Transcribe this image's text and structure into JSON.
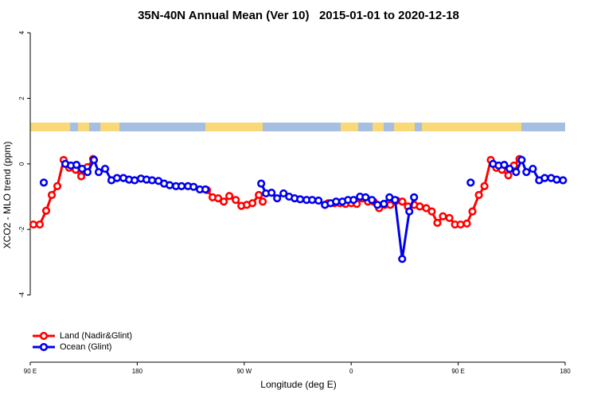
{
  "chart_data": {
    "type": "line",
    "title": "35N-40N Annual Mean (Ver 10)   2015-01-01 to 2020-12-18",
    "x_label": "Longitude (deg E)",
    "y_label": "XCO2 - MLO trend (ppm)",
    "xlim": [
      90,
      540
    ],
    "ylim": [
      -6.05,
      4.15
    ],
    "xticks": [
      {
        "value": 90,
        "label": "90 E"
      },
      180,
      {
        "value": 270,
        "label": "90 W"
      },
      {
        "value": 360,
        "label": "0"
      },
      {
        "value": 450,
        "label": "90 E"
      },
      {
        "value": 540,
        "label": "180"
      }
    ],
    "yticks": [
      -4,
      -2,
      0,
      2,
      4
    ],
    "legend": "bottom-left",
    "series": [
      {
        "name": "Land (Nadir&Glint)",
        "color": "#ff0000",
        "x": [
          92.7,
          98.0,
          103.4,
          108.1,
          112.8,
          118.1,
          122.8,
          128.2,
          132.9,
          138.2,
          142.9,
          null,
          238.7,
          243.4,
          248.1,
          252.8,
          257.5,
          262.9,
          267.6,
          272.2,
          276.9,
          282.3,
          285.6,
          null,
          340.6,
          345.9,
          350.6,
          355.3,
          360.0,
          364.7,
          369.4,
          374.1,
          378.8,
          383.5,
          388.2,
          392.9,
          398.3,
          403.0,
          407.7,
          413.0,
          417.7,
          423.1,
          427.8,
          432.5,
          437.2,
          442.6,
          447.3,
          452.0,
          457.3,
          462.0,
          467.4,
          472.1,
          477.4,
          482.1,
          486.8,
          492.2,
          496.9,
          501.6
        ],
        "values": [
          -1.85,
          -1.85,
          -1.43,
          -0.95,
          -0.68,
          0.12,
          -0.12,
          -0.18,
          -0.38,
          -0.1,
          0.15,
          null,
          -0.8,
          -1.02,
          -1.05,
          -1.15,
          -0.98,
          -1.1,
          -1.28,
          -1.25,
          -1.2,
          -0.95,
          -1.15,
          null,
          -1.2,
          -1.2,
          -1.2,
          -1.22,
          -1.2,
          -1.22,
          -1.05,
          -1.15,
          -1.15,
          -1.35,
          -1.25,
          -1.25,
          -1.12,
          -1.15,
          -1.3,
          -1.25,
          -1.3,
          -1.35,
          -1.45,
          -1.8,
          -1.6,
          -1.65,
          -1.85,
          -1.85,
          -1.82,
          -1.45,
          -0.95,
          -0.68,
          0.12,
          -0.12,
          -0.18,
          -0.35,
          -0.05,
          0.15
        ]
      },
      {
        "name": "Ocean (Glint)",
        "color": "#0000ee",
        "x": [
          101.4,
          null,
          119.5,
          124.2,
          128.9,
          133.6,
          138.2,
          143.6,
          147.6,
          153.0,
          158.3,
          163.0,
          168.4,
          173.1,
          177.8,
          183.1,
          187.8,
          192.5,
          197.9,
          202.6,
          207.3,
          212.6,
          217.3,
          222.7,
          227.4,
          232.7,
          237.4,
          null,
          284.3,
          288.3,
          293.0,
          297.7,
          303.1,
          307.8,
          312.4,
          317.1,
          322.5,
          327.2,
          332.5,
          337.9,
          342.6,
          347.3,
          352.6,
          357.3,
          362.0,
          367.4,
          372.1,
          377.4,
          382.1,
          387.5,
          392.2,
          396.9,
          402.9,
          408.9,
          412.9,
          null,
          460.5,
          null,
          479.3,
          484.0,
          488.7,
          493.3,
          498.7,
          503.4,
          507.4,
          512.8,
          518.1,
          522.8,
          528.2,
          532.9,
          538.2
        ],
        "values": [
          -0.57,
          null,
          0,
          -0.05,
          -0.03,
          -0.15,
          -0.25,
          0.12,
          -0.25,
          -0.15,
          -0.5,
          -0.43,
          -0.43,
          -0.48,
          -0.5,
          -0.45,
          -0.48,
          -0.5,
          -0.52,
          -0.6,
          -0.65,
          -0.68,
          -0.68,
          -0.68,
          -0.7,
          -0.78,
          -0.78,
          null,
          -0.6,
          -0.9,
          -0.88,
          -1.05,
          -0.9,
          -1.0,
          -1.05,
          -1.08,
          -1.1,
          -1.1,
          -1.12,
          -1.25,
          -1.2,
          -1.15,
          -1.15,
          -1.1,
          -1.1,
          -1.0,
          -1.02,
          -1.1,
          -1.25,
          -1.22,
          -1.02,
          -1.1,
          -2.9,
          -1.45,
          -1.02,
          null,
          -0.57,
          null,
          0,
          -0.05,
          -0.03,
          -0.15,
          -0.25,
          0.12,
          -0.25,
          -0.15,
          -0.5,
          -0.43,
          -0.43,
          -0.48,
          -0.5
        ]
      }
    ]
  }
}
